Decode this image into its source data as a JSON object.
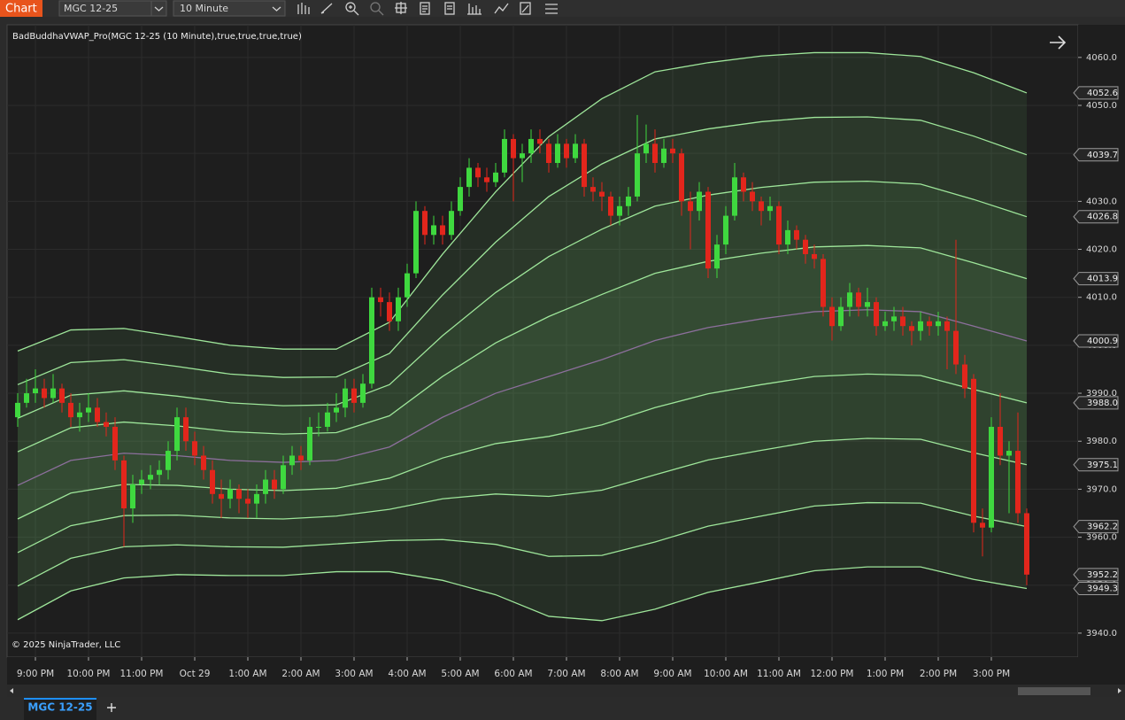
{
  "toolbar": {
    "title": "Chart",
    "instrument": "MGC 12-25",
    "interval": "10 Minute"
  },
  "chart_data": {
    "type": "candlestick",
    "indicator_label": "BadBuddhaVWAP_Pro(MGC 12-25 (10 Minute),true,true,true,true)",
    "copyright": "© 2025 NinjaTrader, LLC",
    "up_color": "#3fd83f",
    "down_color": "#e2261c",
    "candles": [
      [
        3985,
        3990,
        3983,
        3988
      ],
      [
        3988,
        3993,
        3987,
        3990
      ],
      [
        3990,
        3995,
        3988,
        3991
      ],
      [
        3991,
        3993,
        3987,
        3989
      ],
      [
        3989,
        3994,
        3988,
        3991
      ],
      [
        3991,
        3992,
        3986,
        3988
      ],
      [
        3988,
        3990,
        3983,
        3985
      ],
      [
        3985,
        3988,
        3982,
        3986
      ],
      [
        3986,
        3990,
        3984,
        3987
      ],
      [
        3987,
        3989,
        3983,
        3984
      ],
      [
        3984,
        3986,
        3981,
        3983
      ],
      [
        3983,
        3985,
        3974,
        3976
      ],
      [
        3976,
        3977,
        3958,
        3966
      ],
      [
        3966,
        3973,
        3963,
        3971
      ],
      [
        3971,
        3974,
        3969,
        3972
      ],
      [
        3972,
        3975,
        3970,
        3973
      ],
      [
        3973,
        3976,
        3971,
        3974
      ],
      [
        3974,
        3980,
        3972,
        3978
      ],
      [
        3978,
        3987,
        3976,
        3985
      ],
      [
        3985,
        3987,
        3978,
        3980
      ],
      [
        3980,
        3982,
        3975,
        3977
      ],
      [
        3977,
        3979,
        3972,
        3974
      ],
      [
        3974,
        3976,
        3967,
        3969
      ],
      [
        3969,
        3972,
        3964,
        3968
      ],
      [
        3968,
        3972,
        3966,
        3970
      ],
      [
        3970,
        3971,
        3965,
        3968
      ],
      [
        3968,
        3970,
        3964,
        3967
      ],
      [
        3967,
        3971,
        3964,
        3969
      ],
      [
        3969,
        3974,
        3967,
        3972
      ],
      [
        3972,
        3974,
        3968,
        3970
      ],
      [
        3970,
        3977,
        3969,
        3975
      ],
      [
        3975,
        3979,
        3973,
        3977
      ],
      [
        3977,
        3979,
        3974,
        3976
      ],
      [
        3976,
        3985,
        3975,
        3983
      ],
      [
        3983,
        3986,
        3981,
        3983
      ],
      [
        3983,
        3988,
        3982,
        3986
      ],
      [
        3986,
        3990,
        3984,
        3987
      ],
      [
        3987,
        3993,
        3985,
        3991
      ],
      [
        3991,
        3993,
        3986,
        3988
      ],
      [
        3988,
        3994,
        3987,
        3992
      ],
      [
        3992,
        4012,
        3991,
        4010
      ],
      [
        4010,
        4012,
        4006,
        4009
      ],
      [
        4009,
        4011,
        4003,
        4005
      ],
      [
        4005,
        4012,
        4003,
        4010
      ],
      [
        4010,
        4017,
        4008,
        4015
      ],
      [
        4015,
        4030,
        4014,
        4028
      ],
      [
        4028,
        4029,
        4021,
        4023
      ],
      [
        4023,
        4027,
        4021,
        4025
      ],
      [
        4025,
        4027,
        4021,
        4023
      ],
      [
        4023,
        4030,
        4022,
        4028
      ],
      [
        4028,
        4035,
        4027,
        4033
      ],
      [
        4033,
        4039,
        4031,
        4037
      ],
      [
        4037,
        4038,
        4033,
        4035
      ],
      [
        4035,
        4037,
        4032,
        4034
      ],
      [
        4034,
        4038,
        4033,
        4036
      ],
      [
        4036,
        4045,
        4035,
        4043
      ],
      [
        4043,
        4044,
        4030,
        4039
      ],
      [
        4039,
        4042,
        4034,
        4040
      ],
      [
        4040,
        4045,
        4038,
        4043
      ],
      [
        4043,
        4045,
        4040,
        4042
      ],
      [
        4042,
        4043,
        4036,
        4038
      ],
      [
        4038,
        4044,
        4037,
        4042
      ],
      [
        4042,
        4043,
        4037,
        4039
      ],
      [
        4039,
        4044,
        4038,
        4042
      ],
      [
        4042,
        4043,
        4031,
        4033
      ],
      [
        4033,
        4035,
        4030,
        4032
      ],
      [
        4032,
        4034,
        4028,
        4031
      ],
      [
        4031,
        4032,
        4025,
        4027
      ],
      [
        4027,
        4031,
        4025,
        4029
      ],
      [
        4029,
        4033,
        4027,
        4031
      ],
      [
        4031,
        4048,
        4030,
        4040
      ],
      [
        4040,
        4046,
        4038,
        4042
      ],
      [
        4042,
        4045,
        4036,
        4038
      ],
      [
        4038,
        4043,
        4037,
        4041
      ],
      [
        4041,
        4043,
        4038,
        4040
      ],
      [
        4040,
        4041,
        4027,
        4030
      ],
      [
        4030,
        4032,
        4020,
        4028
      ],
      [
        4028,
        4034,
        4026,
        4032
      ],
      [
        4032,
        4033,
        4014,
        4016
      ],
      [
        4016,
        4023,
        4014,
        4021
      ],
      [
        4021,
        4029,
        4019,
        4027
      ],
      [
        4027,
        4038,
        4026,
        4035
      ],
      [
        4035,
        4036,
        4030,
        4032
      ],
      [
        4032,
        4034,
        4028,
        4030
      ],
      [
        4030,
        4031,
        4025,
        4028
      ],
      [
        4028,
        4031,
        4026,
        4029
      ],
      [
        4029,
        4030,
        4019,
        4021
      ],
      [
        4021,
        4026,
        4019,
        4024
      ],
      [
        4024,
        4025,
        4020,
        4022
      ],
      [
        4022,
        4023,
        4017,
        4019
      ],
      [
        4019,
        4021,
        4016,
        4018
      ],
      [
        4018,
        4019,
        4006,
        4008
      ],
      [
        4008,
        4010,
        4001,
        4004
      ],
      [
        4004,
        4010,
        4003,
        4008
      ],
      [
        4008,
        4013,
        4006,
        4011
      ],
      [
        4011,
        4012,
        4006,
        4008
      ],
      [
        4008,
        4012,
        4006,
        4009
      ],
      [
        4009,
        4010,
        4002,
        4004
      ],
      [
        4004,
        4007,
        4003,
        4005
      ],
      [
        4005,
        4008,
        4003,
        4006
      ],
      [
        4006,
        4008,
        4002,
        4004
      ],
      [
        4004,
        4005,
        4000,
        4003
      ],
      [
        4003,
        4007,
        4001,
        4005
      ],
      [
        4005,
        4006,
        4002,
        4004
      ],
      [
        4004,
        4007,
        4002,
        4005
      ],
      [
        4005,
        4006,
        3995,
        4003
      ],
      [
        4003,
        4022,
        3994,
        3996
      ],
      [
        3996,
        3998,
        3989,
        3991
      ],
      [
        3993,
        3994,
        3961,
        3963
      ],
      [
        3963,
        3966,
        3956,
        3962
      ],
      [
        3962,
        3985,
        3961,
        3983
      ],
      [
        3983,
        3990,
        3975,
        3977
      ],
      [
        3977,
        3980,
        3965,
        3978
      ],
      [
        3978,
        3986,
        3963,
        3965
      ],
      [
        3965,
        3966,
        3950,
        3952.2
      ]
    ],
    "bands": {
      "x": [
        0,
        6,
        12,
        18,
        24,
        30,
        36,
        42,
        48,
        54,
        60,
        66,
        72,
        78,
        84,
        90,
        96,
        102,
        108,
        114
      ],
      "series": [
        {
          "color": "#9ee69a",
          "values": [
            3998.8,
            4003.2,
            4003.5,
            4001.8,
            4000.0,
            3999.2,
            3999.2,
            4004.8,
            4019.0,
            4032.0,
            4043.5,
            4051.4,
            4057.0,
            4058.9,
            4060.3,
            4061.0,
            4061.0,
            4060.2,
            4056.8,
            4052.6
          ]
        },
        {
          "color": "#9ee69a",
          "values": [
            3991.8,
            3996.4,
            3997.0,
            3995.6,
            3994.0,
            3993.3,
            3993.4,
            3998.3,
            4010.5,
            4021.5,
            4031.0,
            4037.8,
            4043.0,
            4045.1,
            4046.6,
            4047.5,
            4047.6,
            4046.9,
            4043.6,
            4039.7
          ]
        },
        {
          "color": "#9ee69a",
          "values": [
            3984.8,
            3989.6,
            3990.5,
            3989.4,
            3988.0,
            3987.4,
            3987.6,
            3991.8,
            4002.0,
            4011.0,
            4018.5,
            4024.2,
            4029.0,
            4031.3,
            4032.9,
            4034.0,
            4034.2,
            4033.6,
            4030.4,
            4026.8
          ]
        },
        {
          "color": "#9ee69a",
          "values": [
            3977.8,
            3982.8,
            3984.0,
            3983.2,
            3982.0,
            3981.5,
            3981.8,
            3985.3,
            3993.5,
            4000.5,
            4006.0,
            4010.6,
            4015.0,
            4017.5,
            4019.2,
            4020.5,
            4020.8,
            4020.3,
            4017.2,
            4013.9
          ]
        },
        {
          "color": "#8c6f9c",
          "values": [
            3970.8,
            3976.0,
            3977.5,
            3977.0,
            3976.0,
            3975.6,
            3976.0,
            3978.8,
            3985.0,
            3990.0,
            3993.5,
            3997.0,
            4001.0,
            4003.7,
            4005.5,
            4007.0,
            4007.4,
            4007.0,
            4004.0,
            4000.9
          ]
        },
        {
          "color": "#9ee69a",
          "values": [
            3963.8,
            3969.2,
            3971.0,
            3970.8,
            3970.0,
            3969.7,
            3970.2,
            3972.3,
            3976.5,
            3979.5,
            3981.0,
            3983.4,
            3987.0,
            3989.9,
            3991.8,
            3993.5,
            3994.0,
            3993.7,
            3990.8,
            3988.0
          ]
        },
        {
          "color": "#9ee69a",
          "values": [
            3956.8,
            3962.4,
            3964.5,
            3964.6,
            3964.0,
            3963.8,
            3964.4,
            3965.8,
            3968.0,
            3969.0,
            3968.5,
            3969.8,
            3973.0,
            3976.1,
            3978.1,
            3980.0,
            3980.6,
            3980.4,
            3977.6,
            3975.1
          ]
        },
        {
          "color": "#9ee69a",
          "values": [
            3949.8,
            3955.6,
            3958.0,
            3958.4,
            3958.0,
            3957.9,
            3958.6,
            3959.3,
            3959.5,
            3958.5,
            3956.0,
            3956.2,
            3959.0,
            3962.3,
            3964.4,
            3966.5,
            3967.2,
            3967.1,
            3964.4,
            3962.2
          ]
        },
        {
          "color": "#9ee69a",
          "values": [
            3942.8,
            3948.8,
            3951.5,
            3952.2,
            3952.0,
            3952.0,
            3952.8,
            3952.8,
            3951.0,
            3948.0,
            3943.5,
            3942.6,
            3945.0,
            3948.5,
            3950.7,
            3953.0,
            3953.8,
            3953.8,
            3951.2,
            3949.3
          ]
        }
      ]
    },
    "price_markers": [
      4052.6,
      4039.7,
      4026.8,
      4013.9,
      4000.9,
      {
        "value": 3988,
        "label": "3988.0"
      },
      3975.1,
      3962.2,
      3952.2,
      3949.3
    ],
    "xlim": [
      -1.2,
      119.8
    ],
    "xticks": [
      {
        "value": 2,
        "label": "9:00 PM"
      },
      {
        "value": 8,
        "label": "10:00 PM"
      },
      {
        "value": 14,
        "label": "11:00 PM"
      },
      {
        "value": 20,
        "label": "Oct 29"
      },
      {
        "value": 26,
        "label": "1:00 AM"
      },
      {
        "value": 32,
        "label": "2:00 AM"
      },
      {
        "value": 38,
        "label": "3:00 AM"
      },
      {
        "value": 44,
        "label": "4:00 AM"
      },
      {
        "value": 50,
        "label": "5:00 AM"
      },
      {
        "value": 56,
        "label": "6:00 AM"
      },
      {
        "value": 62,
        "label": "7:00 AM"
      },
      {
        "value": 68,
        "label": "8:00 AM"
      },
      {
        "value": 74,
        "label": "9:00 AM"
      },
      {
        "value": 80,
        "label": "10:00 AM"
      },
      {
        "value": 86,
        "label": "11:00 AM"
      },
      {
        "value": 92,
        "label": "12:00 PM"
      },
      {
        "value": 98,
        "label": "1:00 PM"
      },
      {
        "value": 104,
        "label": "2:00 PM"
      },
      {
        "value": 110,
        "label": "3:00 PM"
      }
    ],
    "ylim": [
      3935,
      4066.8
    ],
    "yticks": [
      {
        "value": 3940,
        "label": "3940.0"
      },
      {
        "value": 3950,
        "label": "3950.0"
      },
      {
        "value": 3960,
        "label": "3960.0"
      },
      {
        "value": 3970,
        "label": "3970.0"
      },
      {
        "value": 3980,
        "label": "3980.0"
      },
      {
        "value": 3990,
        "label": "3990.0"
      },
      {
        "value": 4000,
        "label": "4000.0"
      },
      {
        "value": 4010,
        "label": "4010.0"
      },
      {
        "value": 4020,
        "label": "4020.0"
      },
      {
        "value": 4030,
        "label": "4030.0"
      },
      {
        "value": 4040,
        "label": "4040.0"
      },
      {
        "value": 4050,
        "label": "4050.0"
      },
      {
        "value": 4060,
        "label": "4060.0"
      }
    ],
    "grid": true
  },
  "tabs": {
    "active": "MGC 12-25"
  }
}
